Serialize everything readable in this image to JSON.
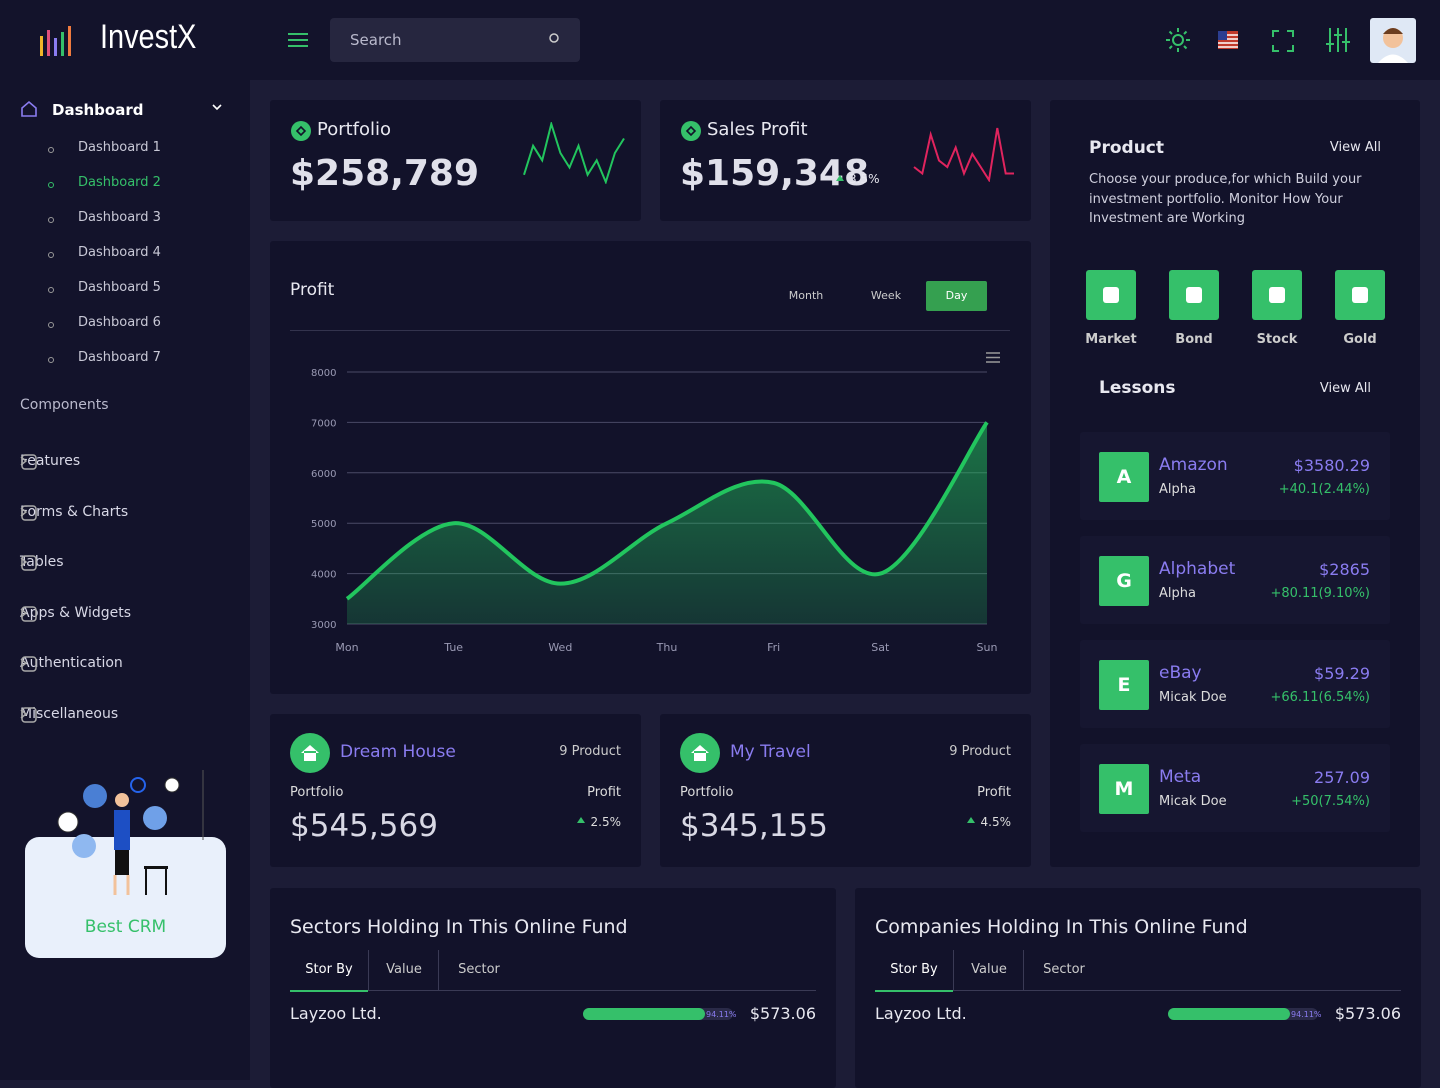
{
  "brand": "InvestX",
  "search": "Search",
  "sidebar": {
    "menu": {
      "title": "Dashboard",
      "items": [
        "Dashboard 1",
        "Dashboard 2",
        "Dashboard 3",
        "Dashboard 4",
        "Dashboard 5",
        "Dashboard 6",
        "Dashboard 7"
      ],
      "active": 1
    },
    "section": "Components",
    "nav": [
      "Features",
      "Forms & Charts",
      "Tables",
      "Apps & Widgets",
      "Authentication",
      "Miscellaneous"
    ],
    "promo": "Best CRM"
  },
  "stats": [
    {
      "title": "Portfolio",
      "value": "$258,789",
      "sparkline": [
        2,
        6,
        4,
        9,
        5,
        3,
        6,
        2,
        4,
        1,
        5,
        7
      ],
      "color": "#22c55e"
    },
    {
      "title": "Sales Profit",
      "value": "$159,348",
      "change": "3.5%",
      "sparkline": [
        3,
        2,
        8,
        4,
        3,
        6,
        2,
        5,
        3,
        1,
        9,
        2,
        2
      ],
      "color": "#e0245e"
    }
  ],
  "chart_data": {
    "type": "area",
    "title": "Profit",
    "tabs": [
      "Month",
      "Week",
      "Day"
    ],
    "active_tab": 2,
    "categories": [
      "Mon",
      "Tue",
      "Wed",
      "Thu",
      "Fri",
      "Sat",
      "Sun"
    ],
    "values": [
      3500,
      5000,
      3800,
      5000,
      5800,
      4000,
      7000
    ],
    "color": "#22c55e",
    "ylim": [
      3000,
      8000
    ],
    "yticks": [
      3000,
      4000,
      5000,
      6000,
      7000,
      8000
    ],
    "grid": true
  },
  "funds": [
    {
      "title": "Dream House",
      "count": "9 Product",
      "label": "Portfolio",
      "value": "$545,569",
      "change_label": "Profit",
      "change": "2.5%"
    },
    {
      "title": "My Travel",
      "count": "9 Product",
      "label": "Portfolio",
      "value": "$345,155",
      "change_label": "Profit",
      "change": "4.5%"
    }
  ],
  "product": {
    "title": "Product",
    "link": "View All",
    "description": "Choose your produce,for which Build your investment portfolio. Monitor How Your Investment are Working",
    "icons": [
      "Market",
      "Bond",
      "Stock",
      "Gold"
    ]
  },
  "lessons": {
    "title": "Lessons",
    "link": "View All",
    "items": [
      {
        "letter": "A",
        "name": "Amazon",
        "owner": "Alpha",
        "price": "$3580.29",
        "change": "+40.1(2.44%)"
      },
      {
        "letter": "G",
        "name": "Alphabet",
        "owner": "Alpha",
        "price": "$2865",
        "change": "+80.11(9.10%)"
      },
      {
        "letter": "E",
        "name": "eBay",
        "owner": "Micak Doe",
        "price": "$59.29",
        "change": "+66.11(6.54%)"
      },
      {
        "letter": "M",
        "name": "Meta",
        "owner": "Micak Doe",
        "price": "257.09",
        "change": "+50(7.54%)"
      }
    ]
  },
  "holdings": [
    {
      "title": "Sectors Holding In This Online Fund",
      "tabs": [
        "Stor By",
        "Value",
        "Sector"
      ],
      "rows": [
        {
          "name": "Layzoo Ltd.",
          "percent": {
            "value": 94.11,
            "label": "94.11%"
          },
          "price": "$573.06"
        }
      ]
    },
    {
      "title": "Companies Holding In This Online Fund",
      "tabs": [
        "Stor By",
        "Value",
        "Sector"
      ],
      "rows": [
        {
          "name": "Layzoo Ltd.",
          "percent": {
            "value": 94.11,
            "label": "94.11%"
          },
          "price": "$573.06"
        }
      ]
    }
  ]
}
